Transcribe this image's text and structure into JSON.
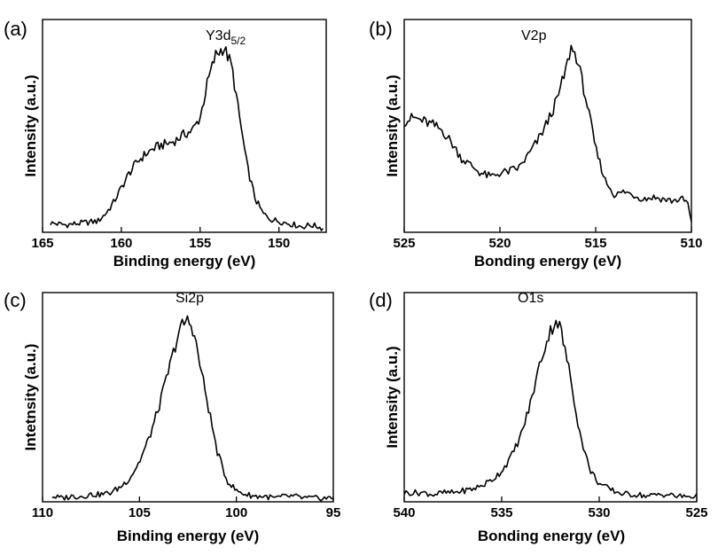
{
  "figure_title": "",
  "chart_data": [
    {
      "id": "a",
      "type": "line",
      "panel_label": "(a)",
      "title": "",
      "xlabel": "Binding energy (eV)",
      "ylabel": "Intensity (a.u.)",
      "peak_label": "Y3d",
      "peak_label_sub": "5/2",
      "xlim": [
        165,
        147
      ],
      "xticks": [
        165,
        160,
        155,
        150
      ],
      "ylim": [
        0,
        1.15
      ],
      "grid": false,
      "legend": "none",
      "series": [
        {
          "name": "Y3d5/2",
          "x": [
            164.5,
            163.5,
            162.5,
            161.5,
            161,
            160.5,
            160,
            159.5,
            159,
            158.5,
            158,
            157.5,
            157,
            156.5,
            156,
            155.5,
            155,
            154.5,
            154,
            153.5,
            153,
            152.5,
            152,
            151.5,
            151,
            150.5,
            150,
            149.5,
            149,
            148.5,
            148,
            147.5,
            147.2
          ],
          "y": [
            0.05,
            0.04,
            0.05,
            0.06,
            0.1,
            0.16,
            0.24,
            0.32,
            0.38,
            0.42,
            0.45,
            0.47,
            0.48,
            0.5,
            0.53,
            0.55,
            0.62,
            0.82,
            0.96,
            1.0,
            0.9,
            0.62,
            0.35,
            0.18,
            0.1,
            0.07,
            0.06,
            0.05,
            0.04,
            0.03,
            0.04,
            0.03,
            0.02
          ]
        }
      ]
    },
    {
      "id": "b",
      "type": "line",
      "panel_label": "(b)",
      "title": "",
      "xlabel": "Bonding energy (eV)",
      "ylabel": "Intensity (a.u.)",
      "peak_label": "V2p",
      "peak_label_sub": "",
      "xlim": [
        525,
        510
      ],
      "xticks": [
        525,
        520,
        515,
        510
      ],
      "ylim": [
        0,
        1.15
      ],
      "grid": false,
      "legend": "none",
      "series": [
        {
          "name": "V2p",
          "x": [
            525,
            524.5,
            524,
            523.5,
            523,
            522.5,
            522,
            521.5,
            521,
            520.5,
            520,
            519.5,
            519,
            518.5,
            518,
            517.5,
            517,
            516.5,
            516.3,
            516,
            515.5,
            515,
            514.5,
            514,
            513.5,
            513,
            512.5,
            512,
            511.5,
            511,
            510.5,
            510.2,
            510
          ],
          "y": [
            0.6,
            0.62,
            0.6,
            0.58,
            0.55,
            0.48,
            0.4,
            0.36,
            0.32,
            0.3,
            0.32,
            0.33,
            0.35,
            0.42,
            0.5,
            0.6,
            0.72,
            0.9,
            1.0,
            0.95,
            0.72,
            0.45,
            0.28,
            0.2,
            0.22,
            0.2,
            0.18,
            0.19,
            0.18,
            0.17,
            0.18,
            0.16,
            0.05
          ]
        }
      ]
    },
    {
      "id": "c",
      "type": "line",
      "panel_label": "(c)",
      "title": "",
      "xlabel": "Binding energy (eV)",
      "ylabel": "Intetnsity (a.u.)",
      "peak_label": "Si2p",
      "peak_label_sub": "",
      "xlim": [
        110,
        95
      ],
      "xticks": [
        110,
        105,
        100,
        95
      ],
      "ylim": [
        0,
        1.15
      ],
      "grid": false,
      "legend": "none",
      "series": [
        {
          "name": "Si2p",
          "x": [
            109.5,
            109,
            108.5,
            108,
            107.5,
            107,
            106.5,
            106,
            105.5,
            105,
            104.5,
            104,
            103.5,
            103,
            102.8,
            102.5,
            102.2,
            102,
            101.5,
            101,
            100.5,
            100,
            99.5,
            99,
            98.5,
            98,
            97.5,
            97,
            96.5,
            96,
            95.5,
            95
          ],
          "y": [
            0.03,
            0.02,
            0.03,
            0.03,
            0.04,
            0.04,
            0.05,
            0.08,
            0.13,
            0.22,
            0.35,
            0.52,
            0.72,
            0.92,
            0.97,
            1.0,
            0.94,
            0.82,
            0.55,
            0.28,
            0.12,
            0.06,
            0.04,
            0.03,
            0.03,
            0.02,
            0.03,
            0.03,
            0.02,
            0.02,
            0.02,
            0.02
          ]
        }
      ]
    },
    {
      "id": "d",
      "type": "line",
      "panel_label": "(d)",
      "title": "",
      "xlabel": "Bonding energy (eV)",
      "ylabel": "Intensity (a.u.)",
      "peak_label": "O1s",
      "peak_label_sub": "",
      "xlim": [
        540,
        525
      ],
      "xticks": [
        540,
        535,
        530,
        525
      ],
      "ylim": [
        0,
        1.15
      ],
      "grid": false,
      "legend": "none",
      "series": [
        {
          "name": "O1s",
          "x": [
            540,
            539,
            538.5,
            538,
            537.5,
            537,
            536.5,
            536,
            535.5,
            535,
            534.5,
            534,
            533.5,
            533,
            532.5,
            532.2,
            532,
            531.5,
            531,
            530.5,
            530,
            529.5,
            529,
            528.5,
            528,
            527.5,
            527,
            526.5,
            526,
            525.5,
            525
          ],
          "y": [
            0.05,
            0.05,
            0.04,
            0.05,
            0.05,
            0.06,
            0.07,
            0.09,
            0.12,
            0.17,
            0.25,
            0.37,
            0.55,
            0.78,
            0.94,
            1.0,
            0.96,
            0.7,
            0.38,
            0.18,
            0.1,
            0.07,
            0.05,
            0.04,
            0.04,
            0.03,
            0.04,
            0.04,
            0.03,
            0.03,
            0.03
          ]
        }
      ]
    }
  ]
}
